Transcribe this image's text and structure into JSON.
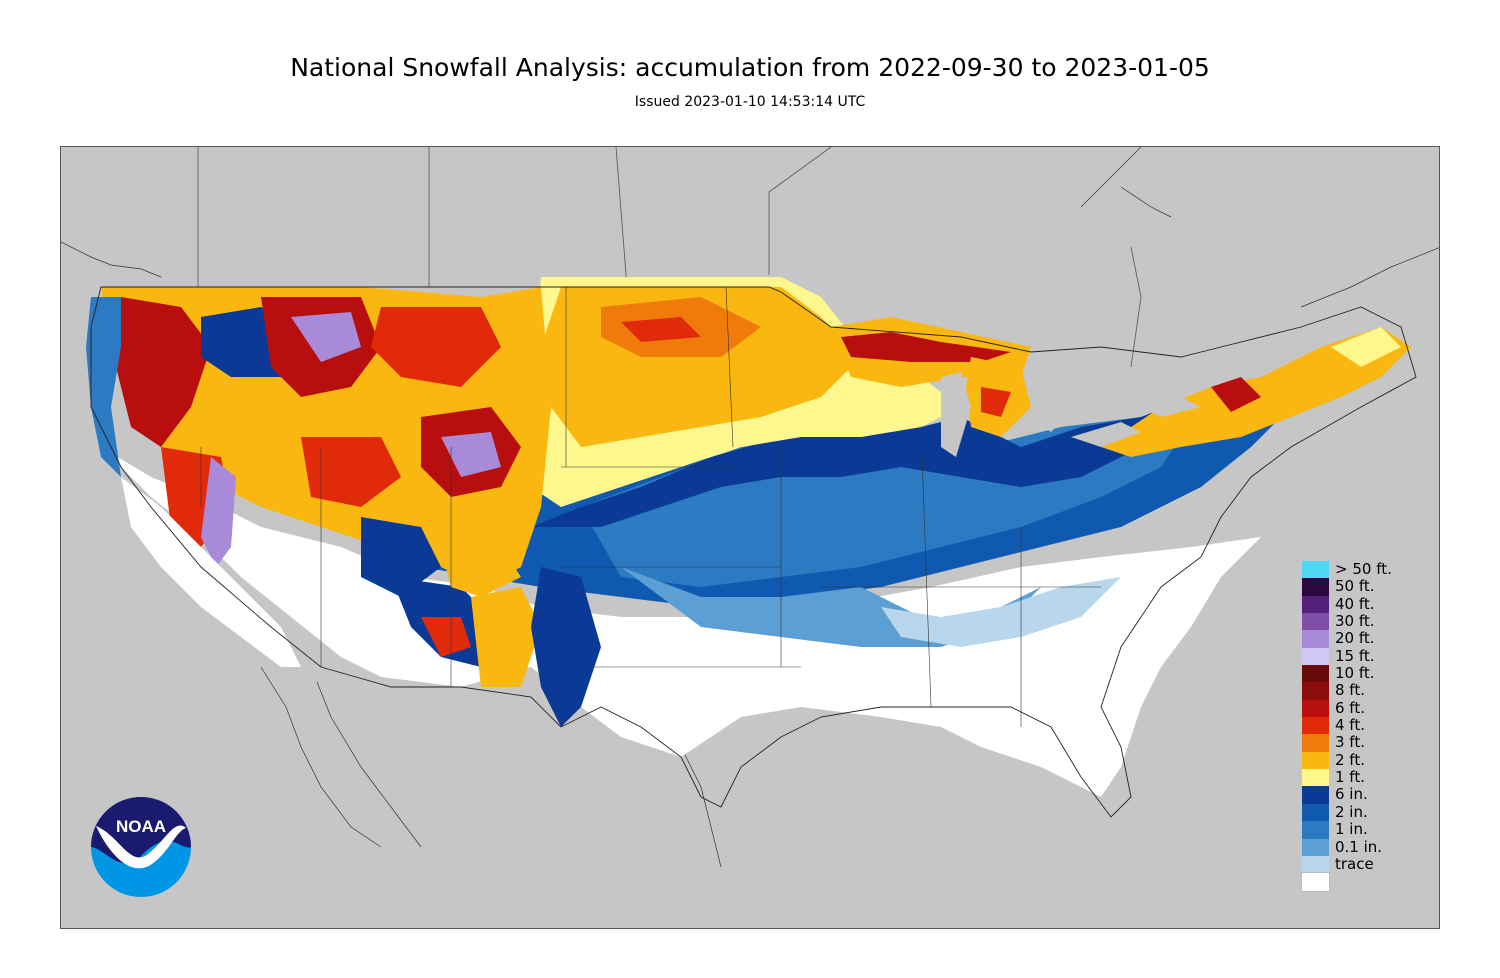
{
  "title": "National Snowfall Analysis: accumulation from 2022-09-30 to 2023-01-05",
  "subtitle": "Issued 2023-01-10 14:53:14 UTC",
  "legend": [
    {
      "label": "> 50 ft.",
      "color": "#4ed6f2"
    },
    {
      "label": "50 ft.",
      "color": "#2a0a3e"
    },
    {
      "label": "40 ft.",
      "color": "#55207a"
    },
    {
      "label": "30 ft.",
      "color": "#7f4fa8"
    },
    {
      "label": "20 ft.",
      "color": "#a88ad8"
    },
    {
      "label": "15 ft.",
      "color": "#d0c8f4"
    },
    {
      "label": "10 ft.",
      "color": "#6a0a0a"
    },
    {
      "label": "8 ft.",
      "color": "#8c0c0c"
    },
    {
      "label": "6 ft.",
      "color": "#b80e0e"
    },
    {
      "label": "4 ft.",
      "color": "#e02a0a"
    },
    {
      "label": "3 ft.",
      "color": "#f07a0a"
    },
    {
      "label": "2 ft.",
      "color": "#fab710"
    },
    {
      "label": "1 ft.",
      "color": "#fdf78e"
    },
    {
      "label": "6 in.",
      "color": "#0a3a96"
    },
    {
      "label": "2 in.",
      "color": "#1059b0"
    },
    {
      "label": "1 in.",
      "color": "#2c7ac2"
    },
    {
      "label": "0.1 in.",
      "color": "#5b9fd4"
    },
    {
      "label": "trace",
      "color": "#b8d6ec"
    },
    {
      "label": "",
      "color": "#ffffff"
    }
  ],
  "logo": {
    "text": "NOAA",
    "colors": {
      "top": "#1a1a6e",
      "bottom": "#0096e6"
    }
  }
}
